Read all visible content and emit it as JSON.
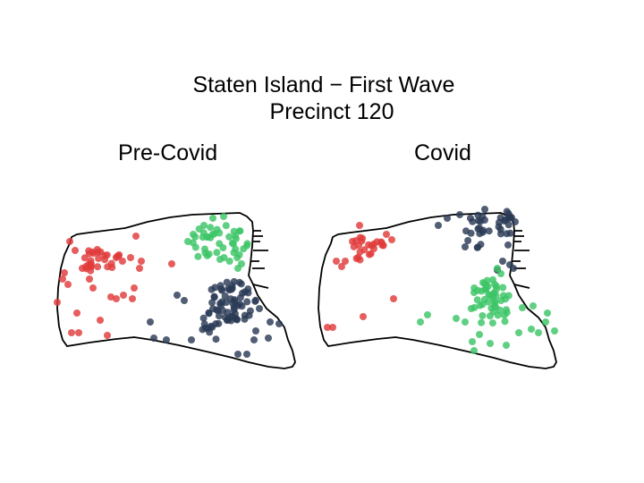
{
  "title": {
    "line1": "Staten Island − First Wave",
    "line2": "Precinct 120"
  },
  "panels": [
    {
      "id": "pre-covid",
      "label": "Pre-Covid"
    },
    {
      "id": "covid",
      "label": "Covid"
    }
  ],
  "colors": {
    "red": "#e03a3a",
    "green": "#3cc466",
    "navy": "#2b3a55",
    "outline": "#000000"
  }
}
